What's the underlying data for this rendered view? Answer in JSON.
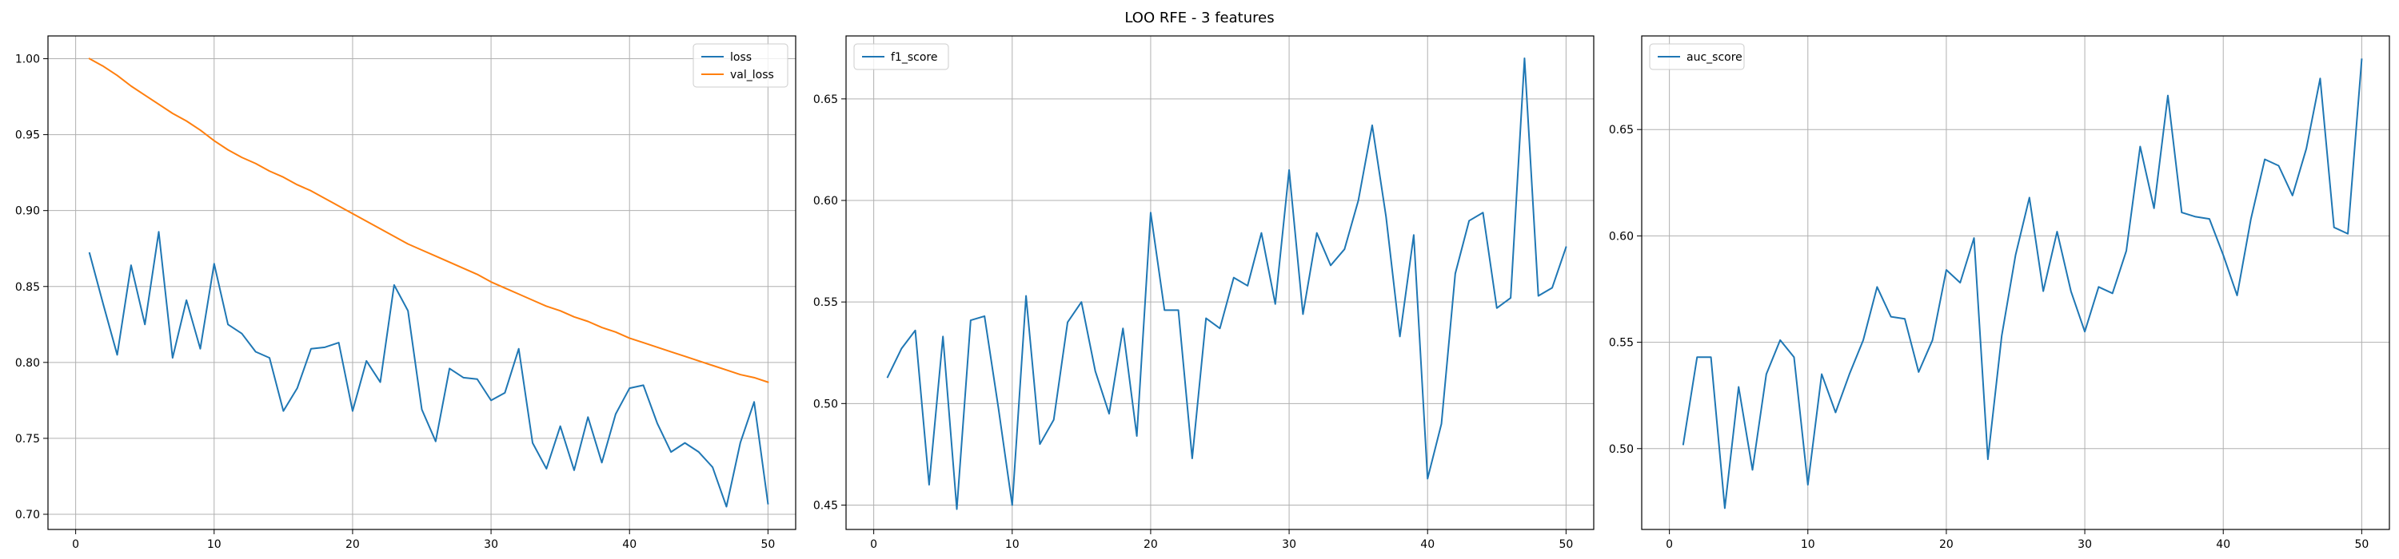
{
  "figure_title": "LOO RFE - 3 features",
  "chart_data": [
    {
      "type": "line",
      "title": "",
      "xlabel": "",
      "ylabel": "",
      "xlim": [
        -2,
        52
      ],
      "ylim": [
        0.69,
        1.015
      ],
      "xticks": [
        0,
        10,
        20,
        30,
        40,
        50
      ],
      "yticks": [
        0.7,
        0.75,
        0.8,
        0.85,
        0.9,
        0.95,
        1.0
      ],
      "ytick_labels": [
        "0.70",
        "0.75",
        "0.80",
        "0.85",
        "0.90",
        "0.95",
        "1.00"
      ],
      "grid": true,
      "legend_position": "top-right",
      "x": [
        1,
        2,
        3,
        4,
        5,
        6,
        7,
        8,
        9,
        10,
        11,
        12,
        13,
        14,
        15,
        16,
        17,
        18,
        19,
        20,
        21,
        22,
        23,
        24,
        25,
        26,
        27,
        28,
        29,
        30,
        31,
        32,
        33,
        34,
        35,
        36,
        37,
        38,
        39,
        40,
        41,
        42,
        43,
        44,
        45,
        46,
        47,
        48,
        49,
        50
      ],
      "series": [
        {
          "name": "loss",
          "color": "#1f77b4",
          "values": [
            0.872,
            0.838,
            0.805,
            0.864,
            0.825,
            0.886,
            0.803,
            0.841,
            0.809,
            0.865,
            0.825,
            0.819,
            0.807,
            0.803,
            0.768,
            0.783,
            0.809,
            0.81,
            0.813,
            0.768,
            0.801,
            0.787,
            0.851,
            0.834,
            0.769,
            0.748,
            0.796,
            0.79,
            0.789,
            0.775,
            0.78,
            0.809,
            0.747,
            0.73,
            0.758,
            0.729,
            0.764,
            0.734,
            0.766,
            0.783,
            0.785,
            0.76,
            0.741,
            0.747,
            0.741,
            0.731,
            0.705,
            0.747,
            0.774,
            0.707
          ]
        },
        {
          "name": "val_loss",
          "color": "#ff7f0e",
          "values": [
            1.0,
            0.995,
            0.989,
            0.982,
            0.976,
            0.97,
            0.964,
            0.959,
            0.953,
            0.946,
            0.94,
            0.935,
            0.931,
            0.926,
            0.922,
            0.917,
            0.913,
            0.908,
            0.903,
            0.898,
            0.893,
            0.888,
            0.883,
            0.878,
            0.874,
            0.87,
            0.866,
            0.862,
            0.858,
            0.853,
            0.849,
            0.845,
            0.841,
            0.837,
            0.834,
            0.83,
            0.827,
            0.823,
            0.82,
            0.816,
            0.813,
            0.81,
            0.807,
            0.804,
            0.801,
            0.798,
            0.795,
            0.792,
            0.79,
            0.787
          ]
        }
      ]
    },
    {
      "type": "line",
      "title": "",
      "xlabel": "",
      "ylabel": "",
      "xlim": [
        -2,
        52
      ],
      "ylim": [
        0.438,
        0.681
      ],
      "xticks": [
        0,
        10,
        20,
        30,
        40,
        50
      ],
      "yticks": [
        0.45,
        0.5,
        0.55,
        0.6,
        0.65
      ],
      "ytick_labels": [
        "0.45",
        "0.50",
        "0.55",
        "0.60",
        "0.65"
      ],
      "grid": true,
      "legend_position": "top-left",
      "x": [
        1,
        2,
        3,
        4,
        5,
        6,
        7,
        8,
        9,
        10,
        11,
        12,
        13,
        14,
        15,
        16,
        17,
        18,
        19,
        20,
        21,
        22,
        23,
        24,
        25,
        26,
        27,
        28,
        29,
        30,
        31,
        32,
        33,
        34,
        35,
        36,
        37,
        38,
        39,
        40,
        41,
        42,
        43,
        44,
        45,
        46,
        47,
        48,
        49,
        50
      ],
      "series": [
        {
          "name": "f1_score",
          "color": "#1f77b4",
          "values": [
            0.513,
            0.527,
            0.536,
            0.46,
            0.533,
            0.448,
            0.541,
            0.543,
            0.498,
            0.45,
            0.553,
            0.48,
            0.492,
            0.54,
            0.55,
            0.516,
            0.495,
            0.537,
            0.484,
            0.594,
            0.546,
            0.546,
            0.473,
            0.542,
            0.537,
            0.562,
            0.558,
            0.584,
            0.549,
            0.615,
            0.544,
            0.584,
            0.568,
            0.576,
            0.6,
            0.637,
            0.592,
            0.533,
            0.583,
            0.463,
            0.49,
            0.564,
            0.59,
            0.594,
            0.547,
            0.552,
            0.67,
            0.553,
            0.557,
            0.577
          ]
        }
      ]
    },
    {
      "type": "line",
      "title": "",
      "xlabel": "",
      "ylabel": "",
      "xlim": [
        -2,
        52
      ],
      "ylim": [
        0.462,
        0.694
      ],
      "xticks": [
        0,
        10,
        20,
        30,
        40,
        50
      ],
      "yticks": [
        0.5,
        0.55,
        0.6,
        0.65
      ],
      "ytick_labels": [
        "0.50",
        "0.55",
        "0.60",
        "0.65"
      ],
      "grid": true,
      "legend_position": "top-left",
      "x": [
        1,
        2,
        3,
        4,
        5,
        6,
        7,
        8,
        9,
        10,
        11,
        12,
        13,
        14,
        15,
        16,
        17,
        18,
        19,
        20,
        21,
        22,
        23,
        24,
        25,
        26,
        27,
        28,
        29,
        30,
        31,
        32,
        33,
        34,
        35,
        36,
        37,
        38,
        39,
        40,
        41,
        42,
        43,
        44,
        45,
        46,
        47,
        48,
        49,
        50
      ],
      "series": [
        {
          "name": "auc_score",
          "color": "#1f77b4",
          "values": [
            0.502,
            0.543,
            0.543,
            0.472,
            0.529,
            0.49,
            0.535,
            0.551,
            0.543,
            0.483,
            0.535,
            0.517,
            0.535,
            0.551,
            0.576,
            0.562,
            0.561,
            0.536,
            0.551,
            0.584,
            0.578,
            0.599,
            0.495,
            0.553,
            0.591,
            0.618,
            0.574,
            0.602,
            0.574,
            0.555,
            0.576,
            0.573,
            0.593,
            0.642,
            0.613,
            0.666,
            0.611,
            0.609,
            0.608,
            0.591,
            0.572,
            0.608,
            0.636,
            0.633,
            0.619,
            0.641,
            0.674,
            0.604,
            0.601,
            0.683
          ]
        }
      ]
    }
  ]
}
